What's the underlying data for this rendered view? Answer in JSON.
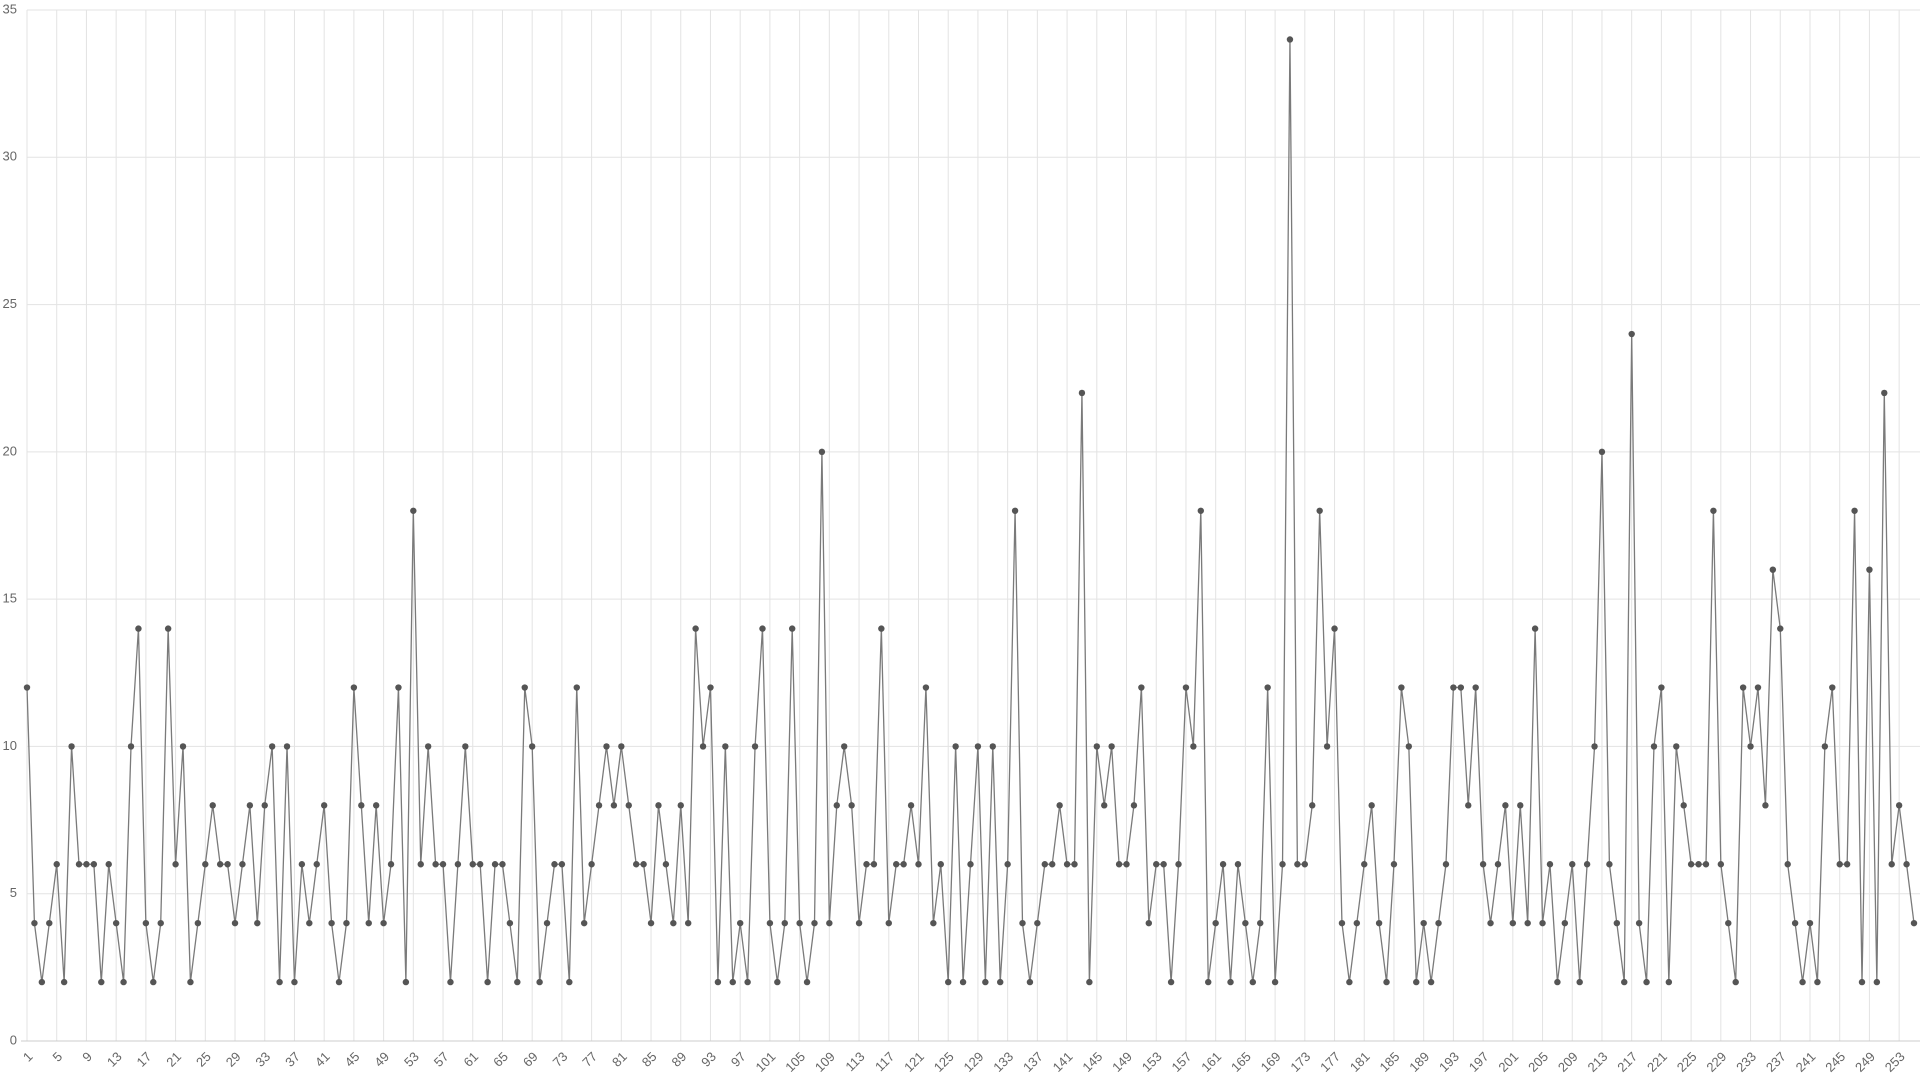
{
  "chart_data": {
    "type": "line",
    "categories": [
      1,
      null,
      null,
      null,
      5,
      null,
      null,
      null,
      9,
      null,
      null,
      null,
      13,
      null,
      null,
      null,
      17,
      null,
      null,
      null,
      21,
      null,
      null,
      null,
      25,
      null,
      null,
      null,
      29,
      null,
      null,
      null,
      33,
      null,
      null,
      null,
      37,
      null,
      null,
      null,
      41,
      null,
      null,
      null,
      45,
      null,
      null,
      null,
      49,
      null,
      null,
      null,
      53,
      null,
      null,
      null,
      57,
      null,
      null,
      null,
      61,
      null,
      null,
      null,
      65,
      null,
      null,
      null,
      69,
      null,
      null,
      null,
      73,
      null,
      null,
      null,
      77,
      null,
      null,
      null,
      81,
      null,
      null,
      null,
      85,
      null,
      null,
      null,
      89,
      null,
      null,
      null,
      93,
      null,
      null,
      null,
      97,
      null,
      null,
      null,
      101,
      null,
      null,
      null,
      105,
      null,
      null,
      null,
      109,
      null,
      null,
      null,
      113,
      null,
      null,
      null,
      117,
      null,
      null,
      null,
      121,
      null,
      null,
      null,
      125,
      null,
      null,
      null,
      129,
      null,
      null,
      null,
      133,
      null,
      null,
      null,
      137,
      null,
      null,
      null,
      141,
      null,
      null,
      null,
      145,
      null,
      null,
      null,
      149,
      null,
      null,
      null,
      153,
      null,
      null,
      null,
      157,
      null,
      null,
      null,
      161,
      null,
      null,
      null,
      165,
      null,
      null,
      null,
      169,
      null,
      null,
      null,
      173,
      null,
      null,
      null,
      177,
      null,
      null,
      null,
      181,
      null,
      null,
      null,
      185,
      null,
      null,
      null,
      189,
      null,
      null,
      null,
      193,
      null,
      null,
      null,
      197,
      null,
      null,
      null,
      201,
      null,
      null,
      null,
      205,
      null,
      null,
      null,
      209,
      null,
      null,
      null,
      213,
      null,
      null,
      null,
      217,
      null,
      null,
      null,
      221,
      null,
      null,
      null,
      225,
      null,
      null,
      null,
      229,
      null,
      null,
      null,
      233,
      null,
      null,
      null,
      237,
      null,
      null,
      null,
      241,
      null,
      null,
      null,
      245,
      null,
      null,
      null,
      249,
      null,
      null,
      null,
      253,
      null,
      null
    ],
    "values": [
      12,
      4,
      2,
      4,
      6,
      2,
      10,
      6,
      6,
      6,
      2,
      6,
      4,
      2,
      10,
      14,
      4,
      2,
      4,
      14,
      6,
      10,
      2,
      4,
      6,
      8,
      6,
      6,
      4,
      6,
      8,
      4,
      8,
      10,
      2,
      10,
      2,
      6,
      4,
      6,
      8,
      4,
      2,
      4,
      12,
      8,
      4,
      8,
      4,
      6,
      12,
      2,
      18,
      6,
      10,
      6,
      6,
      2,
      6,
      10,
      6,
      6,
      2,
      6,
      6,
      4,
      2,
      12,
      10,
      2,
      4,
      6,
      6,
      2,
      12,
      4,
      6,
      8,
      10,
      8,
      10,
      8,
      6,
      6,
      4,
      8,
      6,
      4,
      8,
      4,
      14,
      10,
      12,
      2,
      10,
      2,
      4,
      2,
      10,
      14,
      4,
      2,
      4,
      14,
      4,
      2,
      4,
      20,
      4,
      8,
      10,
      8,
      4,
      6,
      6,
      14,
      4,
      6,
      6,
      8,
      6,
      12,
      4,
      6,
      2,
      10,
      2,
      6,
      10,
      2,
      10,
      2,
      6,
      18,
      4,
      2,
      4,
      6,
      6,
      8,
      6,
      6,
      22,
      2,
      10,
      8,
      10,
      6,
      6,
      8,
      12,
      4,
      6,
      6,
      2,
      6,
      12,
      10,
      18,
      2,
      4,
      6,
      2,
      6,
      4,
      2,
      4,
      12,
      2,
      6,
      34,
      6,
      6,
      8,
      18,
      10,
      14,
      4,
      2,
      4,
      6,
      8,
      4,
      2,
      6,
      12,
      10,
      2,
      4,
      2,
      4,
      6,
      12,
      12,
      8,
      12,
      6,
      4,
      6,
      8,
      4,
      8,
      4,
      14,
      4,
      6,
      2,
      4,
      6,
      2,
      6,
      10,
      20,
      6,
      4,
      2,
      24,
      4,
      2,
      10,
      12,
      2,
      10,
      8,
      6,
      6,
      6,
      18,
      6,
      4,
      2,
      12,
      10,
      12,
      8,
      16,
      14,
      6,
      4,
      2,
      4,
      2,
      10,
      12,
      6,
      6,
      18,
      2,
      16,
      2,
      22,
      6,
      8,
      6,
      4
    ],
    "color": "#7a7a7a",
    "marker_color": "#555555",
    "ylim": [
      0,
      35
    ],
    "yticks": [
      0,
      5,
      10,
      15,
      20,
      25,
      30,
      35
    ],
    "grid": true
  }
}
